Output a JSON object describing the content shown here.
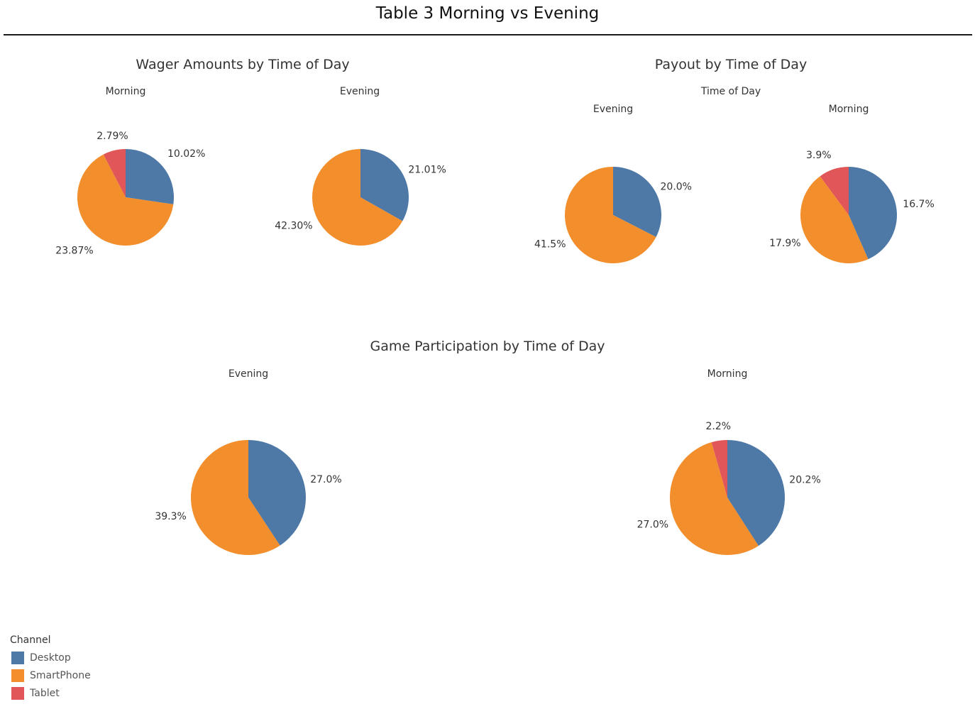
{
  "title": "Table 3 Morning vs Evening",
  "sections": {
    "wager": {
      "title": "Wager Amounts by Time of Day"
    },
    "payout": {
      "title": "Payout by Time of Day",
      "subtitle": "Time of Day"
    },
    "participation": {
      "title": "Game Participation by Time of Day"
    }
  },
  "legend": {
    "title": "Channel",
    "items": [
      {
        "label": "Desktop",
        "color": "#4e79a7"
      },
      {
        "label": "SmartPhone",
        "color": "#f28e2b"
      },
      {
        "label": "Tablet",
        "color": "#e15759"
      }
    ]
  },
  "chart_data": [
    {
      "type": "pie",
      "section": "Wager Amounts by Time of Day",
      "title": "Morning",
      "slices": [
        {
          "channel": "Desktop",
          "value": 10.02,
          "label": "10.02%"
        },
        {
          "channel": "SmartPhone",
          "value": 23.87,
          "label": "23.87%"
        },
        {
          "channel": "Tablet",
          "value": 2.79,
          "label": "2.79%"
        }
      ]
    },
    {
      "type": "pie",
      "section": "Wager Amounts by Time of Day",
      "title": "Evening",
      "slices": [
        {
          "channel": "Desktop",
          "value": 21.01,
          "label": "21.01%"
        },
        {
          "channel": "SmartPhone",
          "value": 42.3,
          "label": "42.30%"
        }
      ]
    },
    {
      "type": "pie",
      "section": "Payout by Time of Day",
      "title": "Evening",
      "slices": [
        {
          "channel": "Desktop",
          "value": 20.0,
          "label": "20.0%"
        },
        {
          "channel": "SmartPhone",
          "value": 41.5,
          "label": "41.5%"
        }
      ]
    },
    {
      "type": "pie",
      "section": "Payout by Time of Day",
      "title": "Morning",
      "slices": [
        {
          "channel": "Desktop",
          "value": 16.7,
          "label": "16.7%"
        },
        {
          "channel": "SmartPhone",
          "value": 17.9,
          "label": "17.9%"
        },
        {
          "channel": "Tablet",
          "value": 3.9,
          "label": "3.9%"
        }
      ]
    },
    {
      "type": "pie",
      "section": "Game Participation by Time of Day",
      "title": "Evening",
      "slices": [
        {
          "channel": "Desktop",
          "value": 27.0,
          "label": "27.0%"
        },
        {
          "channel": "SmartPhone",
          "value": 39.3,
          "label": "39.3%"
        }
      ]
    },
    {
      "type": "pie",
      "section": "Game Participation by Time of Day",
      "title": "Morning",
      "slices": [
        {
          "channel": "Desktop",
          "value": 20.2,
          "label": "20.2%"
        },
        {
          "channel": "SmartPhone",
          "value": 27.0,
          "label": "27.0%"
        },
        {
          "channel": "Tablet",
          "value": 2.2,
          "label": "2.2%"
        }
      ]
    }
  ]
}
